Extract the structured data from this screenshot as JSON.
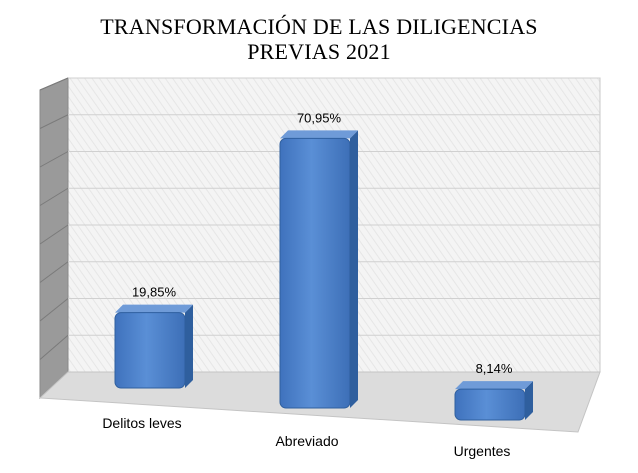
{
  "chart_data": {
    "type": "bar",
    "title": [
      "TRANSFORMACIÓN DE LAS DILIGENCIAS",
      "PREVIAS 2021"
    ],
    "categories": [
      "Delitos leves",
      "Abreviado",
      "Urgentes"
    ],
    "values": [
      19.85,
      70.95,
      8.14
    ],
    "value_labels": [
      "19,85%",
      "70,95%",
      "8,14%"
    ],
    "ylim": [
      0,
      80
    ],
    "grid": true,
    "legend": "none",
    "colors": {
      "bar_front": "#4a7fc9",
      "bar_side": "#2f5f9e",
      "bar_top": "#6f9bd8",
      "wall": "#f2f2f2",
      "floor": "#dcdcdc"
    }
  }
}
